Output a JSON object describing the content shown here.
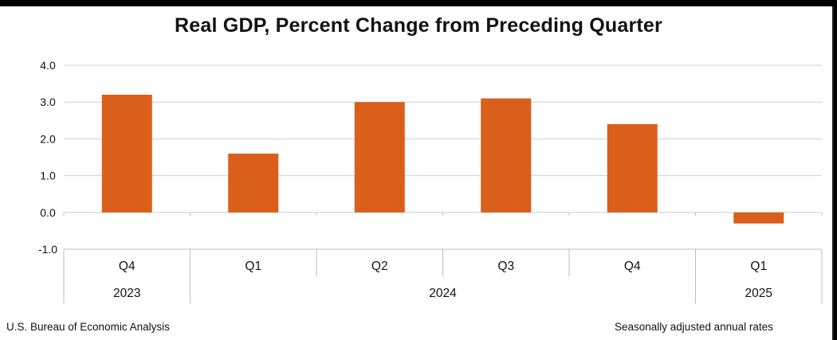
{
  "chart_data": {
    "type": "bar",
    "title": "Real GDP, Percent Change from Preceding Quarter",
    "quarters": [
      "Q4",
      "Q1",
      "Q2",
      "Q3",
      "Q4",
      "Q1"
    ],
    "years": [
      {
        "label": "2023",
        "span": 1
      },
      {
        "label": "2024",
        "span": 4
      },
      {
        "label": "2025",
        "span": 1
      }
    ],
    "values": [
      3.2,
      1.6,
      3.0,
      3.1,
      2.4,
      -0.3
    ],
    "y_ticks": [
      "4.0",
      "3.0",
      "2.0",
      "1.0",
      "0.0",
      "-1.0"
    ],
    "ylim": [
      -1.0,
      4.0
    ],
    "bar_color": "#d95f1a",
    "grid": true
  },
  "footer": {
    "source": "U.S. Bureau of Economic Analysis",
    "note": "Seasonally adjusted annual rates"
  }
}
